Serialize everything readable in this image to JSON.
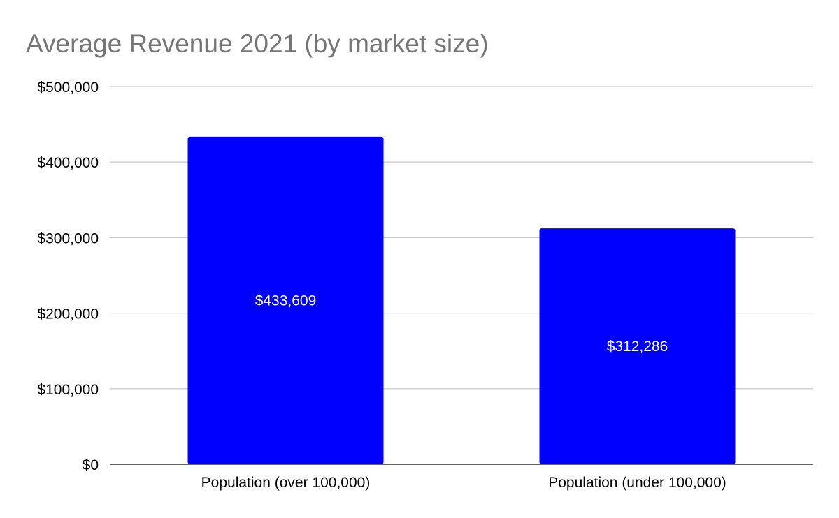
{
  "colors": {
    "bar": "#0000ff",
    "title": "#757575",
    "grid": "#cccccc",
    "axis": "#333333",
    "data_label": "#ffffff"
  },
  "chart_data": {
    "type": "bar",
    "title": "Average Revenue 2021 (by market size)",
    "xlabel": "",
    "ylabel": "",
    "categories": [
      "Population (over 100,000)",
      "Population (under 100,000)"
    ],
    "values": [
      433609,
      312286
    ],
    "value_labels": [
      "$433,609",
      "$312,286"
    ],
    "ylim": [
      0,
      500000
    ],
    "yticks": [
      0,
      100000,
      200000,
      300000,
      400000,
      500000
    ],
    "ytick_labels": [
      "$0",
      "$100,000",
      "$200,000",
      "$300,000",
      "$400,000",
      "$500,000"
    ],
    "grid": true,
    "legend": "none"
  }
}
